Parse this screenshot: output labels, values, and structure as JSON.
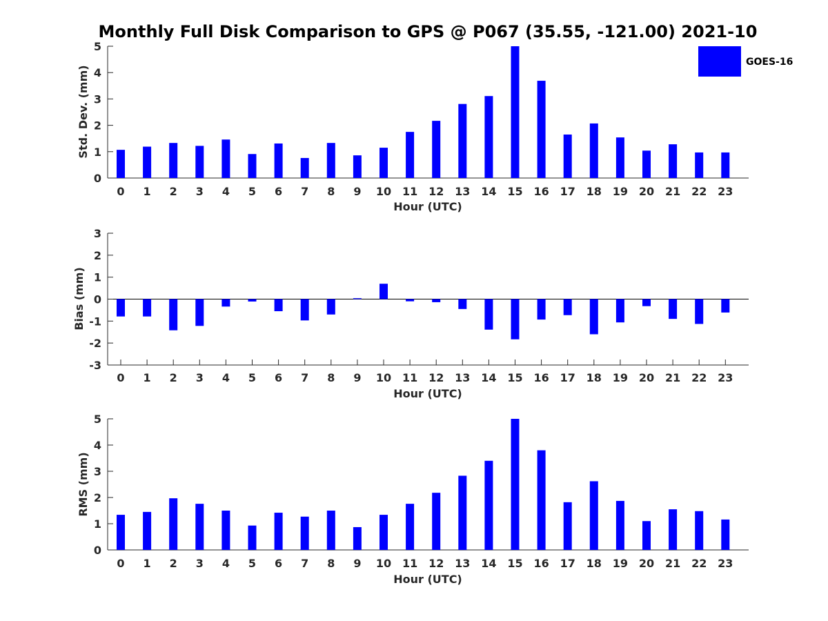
{
  "figure_title": "Monthly Full Disk Comparison to GPS @ P067 (35.55, -121.00) 2021-10",
  "chart_data": [
    {
      "type": "bar",
      "title": "Monthly Full Disk Comparison to GPS @ P067 (35.55, -121.00) 2021-10",
      "xlabel": "Hour (UTC)",
      "ylabel": "Std. Dev. (mm)",
      "categories": [
        "0",
        "1",
        "2",
        "3",
        "4",
        "5",
        "6",
        "7",
        "8",
        "9",
        "10",
        "11",
        "12",
        "13",
        "14",
        "15",
        "16",
        "17",
        "18",
        "19",
        "20",
        "21",
        "22",
        "23"
      ],
      "series": [
        {
          "name": "GOES-16",
          "color": "#0000ff",
          "values": [
            1.07,
            1.19,
            1.33,
            1.22,
            1.46,
            0.91,
            1.31,
            0.76,
            1.33,
            0.86,
            1.15,
            1.75,
            2.17,
            2.81,
            3.11,
            5.0,
            3.69,
            1.65,
            2.07,
            1.54,
            1.04,
            1.28,
            0.97,
            0.97
          ]
        }
      ],
      "ylim": [
        0,
        5
      ],
      "yticks": [
        0,
        1,
        2,
        3,
        4,
        5
      ],
      "grid": false,
      "legend": "top-right"
    },
    {
      "type": "bar",
      "xlabel": "Hour (UTC)",
      "ylabel": "Bias (mm)",
      "categories": [
        "0",
        "1",
        "2",
        "3",
        "4",
        "5",
        "6",
        "7",
        "8",
        "9",
        "10",
        "11",
        "12",
        "13",
        "14",
        "15",
        "16",
        "17",
        "18",
        "19",
        "20",
        "21",
        "22",
        "23"
      ],
      "series": [
        {
          "name": "GOES-16",
          "color": "#0000ff",
          "values": [
            -0.79,
            -0.79,
            -1.42,
            -1.22,
            -0.34,
            -0.11,
            -0.55,
            -0.97,
            -0.7,
            0.04,
            0.7,
            -0.1,
            -0.14,
            -0.45,
            -1.39,
            -1.83,
            -0.93,
            -0.73,
            -1.6,
            -1.06,
            -0.32,
            -0.9,
            -1.13,
            -0.61
          ]
        }
      ],
      "ylim": [
        -3,
        3
      ],
      "yticks": [
        -3,
        -2,
        -1,
        0,
        1,
        2,
        3
      ],
      "grid": false
    },
    {
      "type": "bar",
      "xlabel": "Hour (UTC)",
      "ylabel": "RMS (mm)",
      "categories": [
        "0",
        "1",
        "2",
        "3",
        "4",
        "5",
        "6",
        "7",
        "8",
        "9",
        "10",
        "11",
        "12",
        "13",
        "14",
        "15",
        "16",
        "17",
        "18",
        "19",
        "20",
        "21",
        "22",
        "23"
      ],
      "series": [
        {
          "name": "GOES-16",
          "color": "#0000ff",
          "values": [
            1.34,
            1.45,
            1.97,
            1.76,
            1.5,
            0.93,
            1.42,
            1.27,
            1.5,
            0.87,
            1.34,
            1.76,
            2.18,
            2.83,
            3.4,
            5.0,
            3.8,
            1.82,
            2.62,
            1.87,
            1.1,
            1.55,
            1.48,
            1.16
          ]
        }
      ],
      "ylim": [
        0,
        5
      ],
      "yticks": [
        0,
        1,
        2,
        3,
        4,
        5
      ],
      "grid": false
    }
  ],
  "legend": {
    "label": "GOES-16",
    "color": "#0000ff"
  }
}
